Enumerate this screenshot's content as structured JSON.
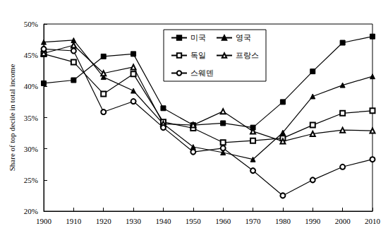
{
  "chart_data": {
    "type": "line",
    "y_label": "Share of top decile in total income",
    "x": [
      1900,
      1910,
      1920,
      1930,
      1940,
      1950,
      1960,
      1970,
      1980,
      1990,
      2000,
      2010
    ],
    "series": [
      {
        "name": "미국",
        "color": "#000000",
        "marker": "square",
        "values": [
          40.5,
          41.0,
          44.8,
          45.2,
          36.5,
          33.8,
          34.1,
          33.4,
          37.5,
          42.4,
          47.0,
          48.0
        ]
      },
      {
        "name": "영국",
        "color": "#000000",
        "marker": "triangle",
        "values": [
          47.1,
          47.4,
          41.5,
          39.3,
          34.0,
          30.3,
          29.4,
          28.3,
          32.6,
          38.4,
          40.2,
          41.6
        ]
      },
      {
        "name": "독일",
        "color": "#000000",
        "marker": "open-square",
        "values": [
          45.2,
          43.9,
          38.8,
          42.0,
          34.3,
          33.3,
          31.0,
          31.3,
          31.7,
          33.8,
          35.7,
          36.1
        ]
      },
      {
        "name": "프랑스",
        "color": "#000000",
        "marker": "open-triangle",
        "values": [
          45.3,
          46.6,
          42.1,
          43.1,
          34.0,
          33.8,
          36.0,
          32.8,
          31.2,
          32.4,
          33.0,
          32.9
        ]
      },
      {
        "name": "스웨덴",
        "color": "#000000",
        "marker": "open-circle",
        "values": [
          46.0,
          45.7,
          35.9,
          37.6,
          33.4,
          29.5,
          30.1,
          26.5,
          22.5,
          25.0,
          27.1,
          28.3
        ]
      }
    ],
    "xlim": [
      1900,
      2010
    ],
    "xticks": [
      1900,
      1910,
      1920,
      1930,
      1940,
      1950,
      1960,
      1970,
      1980,
      1990,
      2000,
      2010
    ],
    "ylim": [
      20,
      50
    ],
    "yticks": [
      {
        "value": 20,
        "label": "20%"
      },
      {
        "value": 25,
        "label": "25%"
      },
      {
        "value": 30,
        "label": "30%"
      },
      {
        "value": 35,
        "label": "35%"
      },
      {
        "value": 40,
        "label": "40%"
      },
      {
        "value": 45,
        "label": "45%"
      },
      {
        "value": 50,
        "label": "50%"
      }
    ],
    "grid": false,
    "legend": "top"
  }
}
